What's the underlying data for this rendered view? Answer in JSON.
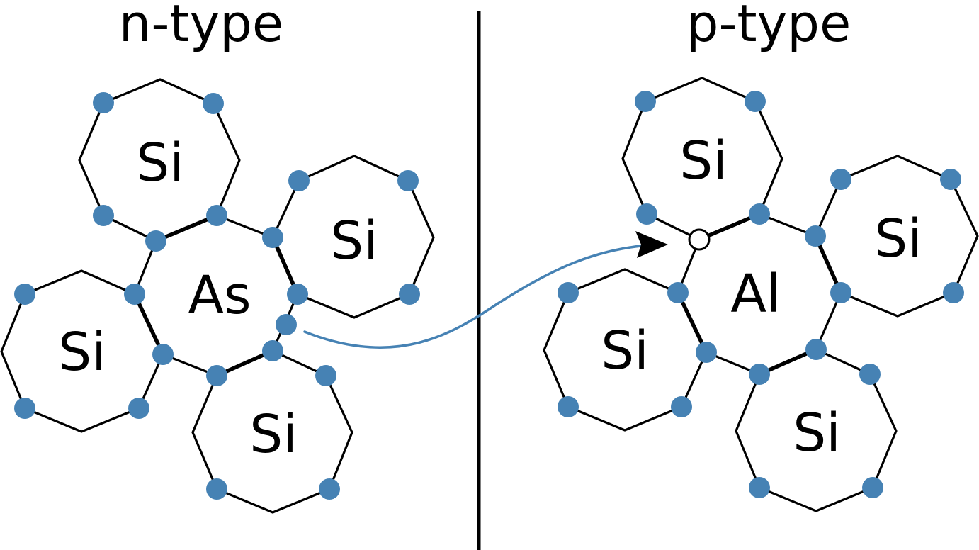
{
  "panels": [
    {
      "title": "n-type",
      "dopant": {
        "label": "As",
        "kind": "donor"
      },
      "neighbors": [
        "Si",
        "Si",
        "Si",
        "Si"
      ]
    },
    {
      "title": "p-type",
      "dopant": {
        "label": "Al",
        "kind": "acceptor"
      },
      "neighbors": [
        "Si",
        "Si",
        "Si",
        "Si"
      ]
    }
  ],
  "colors": {
    "electron": "#4682b4",
    "line": "#000000",
    "hole_fill": "#ffffff",
    "arrow": "#4682b4"
  },
  "icons": {
    "electron": "filled-circle",
    "hole": "open-circle",
    "arrowhead": "triangle"
  }
}
